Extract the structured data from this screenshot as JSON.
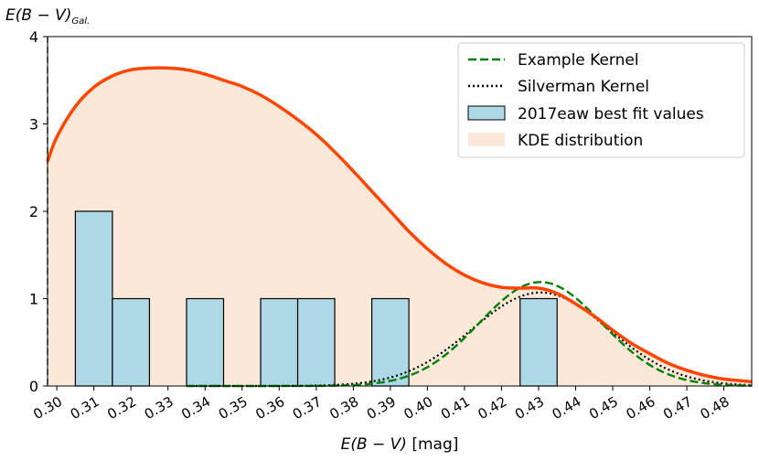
{
  "chart_data": {
    "type": "histogram-kde",
    "xlabel_italic": "E(B − V)",
    "xlabel_unit": " [mag]",
    "ylabel_main": "E(B − V)",
    "ylabel_sub": "Gal.",
    "xlim": [
      0.2975,
      0.4875
    ],
    "ylim": [
      0,
      4
    ],
    "x_ticks": [
      "0.30",
      "0.31",
      "0.32",
      "0.33",
      "0.34",
      "0.35",
      "0.36",
      "0.37",
      "0.38",
      "0.39",
      "0.40",
      "0.41",
      "0.42",
      "0.43",
      "0.44",
      "0.45",
      "0.46",
      "0.47",
      "0.48"
    ],
    "y_ticks": [
      "0",
      "1",
      "2",
      "3",
      "4"
    ],
    "galactic_reddening": 0.2975,
    "bar_width": 0.01,
    "bars": [
      {
        "center": 0.31,
        "count": 2
      },
      {
        "center": 0.32,
        "count": 1
      },
      {
        "center": 0.34,
        "count": 1
      },
      {
        "center": 0.36,
        "count": 1
      },
      {
        "center": 0.37,
        "count": 1
      },
      {
        "center": 0.39,
        "count": 1
      },
      {
        "center": 0.43,
        "count": 1
      }
    ],
    "kde": {
      "x": [
        0.2975,
        0.3,
        0.305,
        0.31,
        0.315,
        0.32,
        0.325,
        0.33,
        0.335,
        0.34,
        0.345,
        0.35,
        0.355,
        0.36,
        0.365,
        0.37,
        0.375,
        0.38,
        0.385,
        0.39,
        0.395,
        0.4,
        0.405,
        0.41,
        0.415,
        0.42,
        0.425,
        0.43,
        0.435,
        0.44,
        0.445,
        0.45,
        0.455,
        0.46,
        0.465,
        0.47,
        0.475,
        0.48,
        0.4875
      ],
      "y": [
        2.57,
        2.85,
        3.2,
        3.42,
        3.55,
        3.62,
        3.64,
        3.64,
        3.62,
        3.57,
        3.5,
        3.43,
        3.33,
        3.2,
        3.05,
        2.88,
        2.68,
        2.46,
        2.23,
        2.0,
        1.77,
        1.57,
        1.4,
        1.27,
        1.18,
        1.13,
        1.12,
        1.12,
        1.06,
        0.94,
        0.8,
        0.64,
        0.49,
        0.37,
        0.26,
        0.18,
        0.12,
        0.08,
        0.05
      ]
    },
    "example_kernel": {
      "mean": 0.4305,
      "sigma": 0.0165,
      "peak": 1.19
    },
    "silverman_kernel": {
      "mean": 0.4305,
      "sigma": 0.0185,
      "peak": 1.07
    },
    "legend_position": "top-right",
    "legend": [
      {
        "label": "Example Kernel"
      },
      {
        "label": "Silverman Kernel"
      },
      {
        "label": "2017eaw best fit values"
      },
      {
        "label": "KDE distribution"
      }
    ],
    "colors": {
      "kde_line": "#ff4500",
      "kde_fill": "#fbe8d9",
      "bar_fill": "#add8e6",
      "bar_edge": "#000000",
      "example": "#008000",
      "silverman": "#000000",
      "vline": "#808080"
    }
  }
}
